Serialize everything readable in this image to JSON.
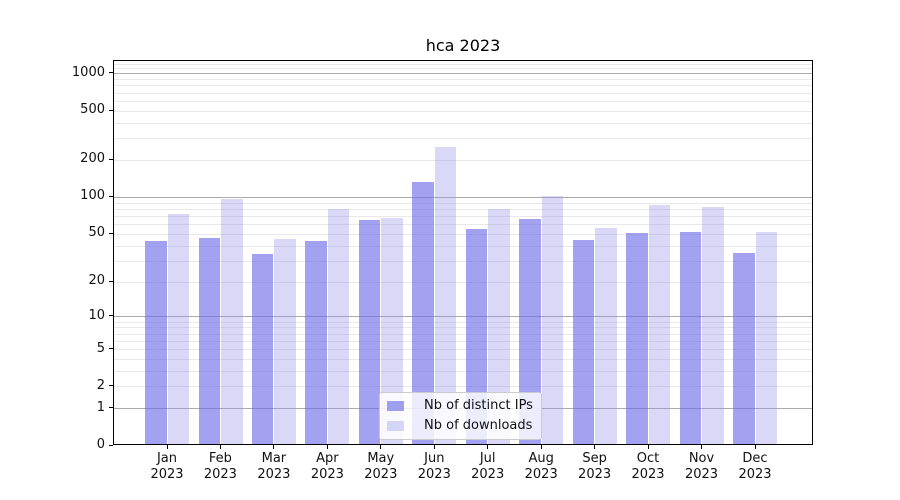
{
  "chart_data": {
    "type": "bar",
    "title": "hca 2023",
    "grid": true,
    "legend_position": "bottom-center",
    "categories": [
      {
        "month": "Jan",
        "year": "2023"
      },
      {
        "month": "Feb",
        "year": "2023"
      },
      {
        "month": "Mar",
        "year": "2023"
      },
      {
        "month": "Apr",
        "year": "2023"
      },
      {
        "month": "May",
        "year": "2023"
      },
      {
        "month": "Jun",
        "year": "2023"
      },
      {
        "month": "Jul",
        "year": "2023"
      },
      {
        "month": "Aug",
        "year": "2023"
      },
      {
        "month": "Sep",
        "year": "2023"
      },
      {
        "month": "Oct",
        "year": "2023"
      },
      {
        "month": "Nov",
        "year": "2023"
      },
      {
        "month": "Dec",
        "year": "2023"
      }
    ],
    "series": [
      {
        "name": "Nb of distinct IPs",
        "color": "#a2a2f0",
        "fill": "rgba(105,105,230,0.62)",
        "values": [
          42,
          45,
          33,
          42,
          63,
          128,
          53,
          64,
          43,
          49,
          50,
          34
        ]
      },
      {
        "name": "Nb of downloads",
        "color": "#d9d9f7",
        "fill": "rgba(146,146,232,0.35)",
        "values": [
          70,
          93,
          44,
          77,
          66,
          248,
          77,
          99,
          54,
          84,
          80,
          50
        ]
      }
    ],
    "y_axis": {
      "scale": "log1p",
      "ylim": [
        0,
        1270
      ],
      "ticks": [
        {
          "label": "1000",
          "value": 1000
        },
        {
          "label": "500",
          "value": 500
        },
        {
          "label": "200",
          "value": 200
        },
        {
          "label": "100",
          "value": 100
        },
        {
          "label": "50",
          "value": 50
        },
        {
          "label": "20",
          "value": 20
        },
        {
          "label": "10",
          "value": 10
        },
        {
          "label": "5",
          "value": 5
        },
        {
          "label": "2",
          "value": 2
        },
        {
          "label": "1",
          "value": 1
        },
        {
          "label": "0",
          "value": 0
        }
      ],
      "gridlines_major": [
        1,
        10,
        100,
        1000
      ],
      "gridlines_minor": [
        2,
        3,
        4,
        5,
        6,
        7,
        8,
        9,
        20,
        30,
        40,
        50,
        60,
        70,
        80,
        90,
        200,
        300,
        400,
        500,
        600,
        700,
        800,
        900,
        1100,
        1200
      ]
    },
    "colors": {
      "grid_major": "#ababab",
      "grid_minor": "#e9e9e9",
      "axis": "#000000"
    }
  }
}
